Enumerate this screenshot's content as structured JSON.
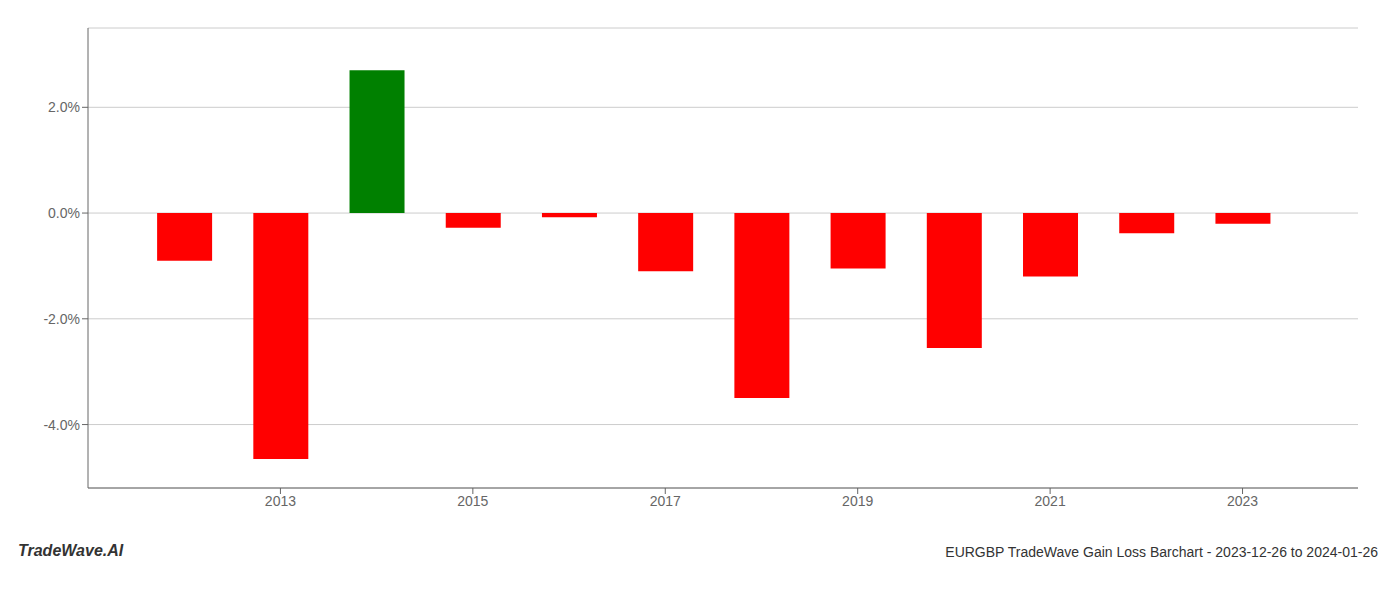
{
  "chart_data": {
    "type": "bar",
    "x": [
      2012,
      2013,
      2014,
      2015,
      2016,
      2017,
      2018,
      2019,
      2020,
      2021,
      2022,
      2023
    ],
    "values": [
      -0.9,
      -4.65,
      2.7,
      -0.28,
      -0.08,
      -1.1,
      -3.5,
      -1.05,
      -2.55,
      -1.2,
      -0.38,
      -0.2
    ],
    "colors": [
      "#ff0000",
      "#ff0000",
      "#008000",
      "#ff0000",
      "#ff0000",
      "#ff0000",
      "#ff0000",
      "#ff0000",
      "#ff0000",
      "#ff0000",
      "#ff0000",
      "#ff0000"
    ],
    "xlim": [
      2011.0,
      2024.2
    ],
    "xticks": [
      2013,
      2015,
      2017,
      2019,
      2021,
      2023
    ],
    "ylim": [
      -5.2,
      3.5
    ],
    "yticks": [
      {
        "value": -4.0,
        "label": "-4.0%"
      },
      {
        "value": -2.0,
        "label": "-2.0%"
      },
      {
        "value": 0.0,
        "label": "0.0%"
      },
      {
        "value": 2.0,
        "label": "2.0%"
      }
    ],
    "grid": true,
    "annotations": [
      "TradeWave.AI",
      "EURGBP TradeWave Gain Loss Barchart - 2023-12-26 to 2024-01-26"
    ]
  }
}
